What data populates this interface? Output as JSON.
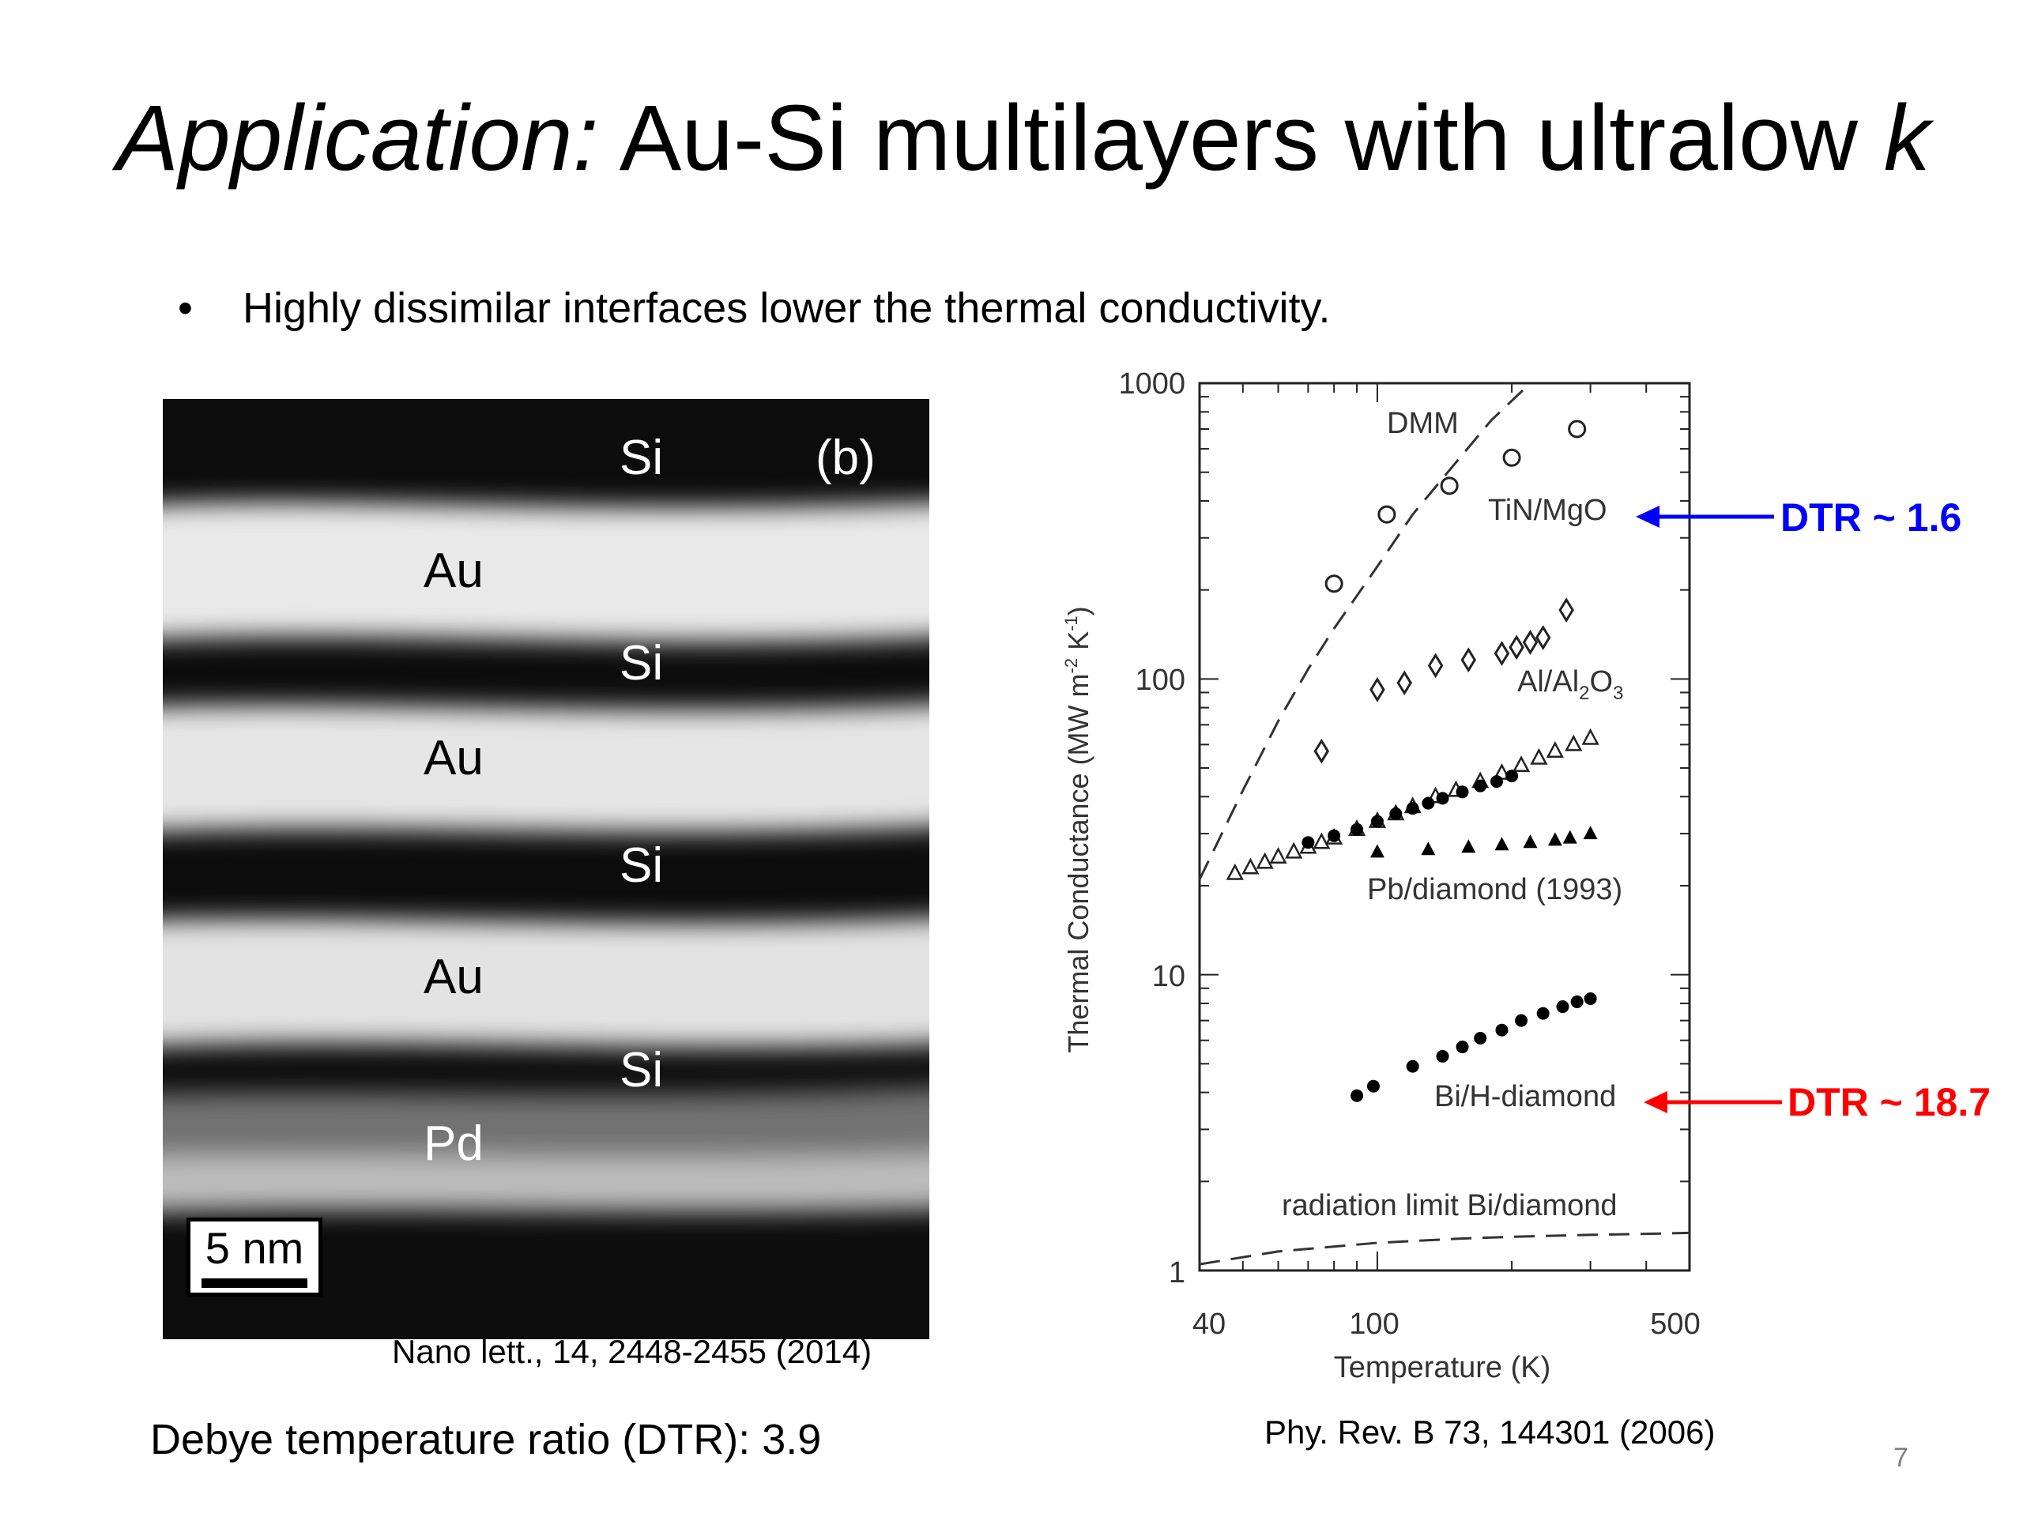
{
  "slide": {
    "title_italic": "Application:",
    "title_rest": " Au-Si multilayers with ultralow ",
    "title_k": "k",
    "bullet_symbol": "•",
    "bullet": "Highly dissimilar interfaces lower the thermal conductivity.",
    "dtr_text": "Debye temperature ratio (DTR): 3.9",
    "page_number": "7"
  },
  "tem_image": {
    "panel_label": "(b)",
    "layer_labels": [
      "Si",
      "Au",
      "Si",
      "Au",
      "Si",
      "Au",
      "Si",
      "Pd"
    ],
    "scale_bar": "5 nm",
    "citation": "Nano lett., 14, 2448-2455 (2014)"
  },
  "chart_data": {
    "type": "scatter",
    "xlabel": "Temperature (K)",
    "ylabel": "Thermal Conductance (MW m-2 K-1)",
    "x_scale": "log",
    "y_scale": "log",
    "xlim": [
      40,
      500
    ],
    "ylim": [
      1,
      1000
    ],
    "x_ticks": [
      "40",
      "100",
      "500"
    ],
    "y_ticks": [
      "1",
      "10",
      "100",
      "1000"
    ],
    "citation": "Phy. Rev. B 73, 144301 (2006)",
    "series": [
      {
        "name": "TiN/MgO",
        "marker": "open-circle",
        "x": [
          80,
          105,
          145,
          200,
          280
        ],
        "y": [
          210,
          360,
          450,
          560,
          700
        ]
      },
      {
        "name": "Al/Al2O3",
        "marker": "open-diamond",
        "x": [
          75,
          100,
          115,
          135,
          160,
          190,
          205,
          220,
          235,
          265
        ],
        "y": [
          57,
          92,
          97,
          111,
          116,
          122,
          128,
          133,
          138,
          171
        ]
      },
      {
        "name": "open triangles",
        "marker": "open-triangle",
        "x": [
          48,
          52,
          56,
          60,
          65,
          70,
          75,
          80,
          90,
          100,
          110,
          120,
          135,
          150,
          170,
          190,
          210,
          230,
          250,
          275,
          300
        ],
        "y": [
          22,
          23,
          24,
          25,
          26,
          27,
          28,
          29,
          31,
          33,
          35,
          37,
          40,
          42,
          45,
          48,
          51,
          54,
          57,
          60,
          63
        ]
      },
      {
        "name": "filled circles",
        "marker": "filled-circle",
        "x": [
          70,
          80,
          90,
          100,
          110,
          120,
          130,
          140,
          155,
          170,
          185,
          200
        ],
        "y": [
          28,
          29.5,
          31,
          33,
          35,
          36.5,
          38,
          39.5,
          41.5,
          43.5,
          45,
          47
        ]
      },
      {
        "name": "Pb/diamond (1993)",
        "marker": "filled-triangle",
        "x": [
          100,
          130,
          160,
          190,
          220,
          250,
          270,
          300
        ],
        "y": [
          26,
          26.5,
          27,
          27.5,
          28,
          28.5,
          29,
          30
        ]
      },
      {
        "name": "Bi/H-diamond",
        "marker": "filled-circle",
        "x": [
          90,
          98,
          120,
          140,
          155,
          170,
          190,
          210,
          235,
          260,
          280,
          300
        ],
        "y": [
          3.9,
          4.2,
          4.9,
          5.3,
          5.7,
          6.1,
          6.5,
          7.0,
          7.4,
          7.8,
          8.1,
          8.3
        ]
      }
    ],
    "curves": [
      {
        "name": "DMM",
        "style": "dashed",
        "x": [
          40,
          50,
          60,
          70,
          80,
          100,
          120,
          150,
          180,
          220
        ],
        "y": [
          21,
          42,
          72,
          108,
          148,
          240,
          360,
          540,
          750,
          1000
        ]
      },
      {
        "name": "radiation limit Bi/diamond",
        "style": "dashed",
        "x": [
          40,
          60,
          100,
          150,
          200,
          300,
          400,
          500
        ],
        "y": [
          1.05,
          1.16,
          1.24,
          1.28,
          1.3,
          1.32,
          1.33,
          1.34
        ]
      }
    ],
    "annotations": {
      "dmm": "DMM",
      "tin_mgo": "TiN/MgO",
      "al_al2o3_main": "Al/Al",
      "al_al2o3_sub": "2",
      "al_al2o3_o": "O",
      "al_al2o3_sub3": "3",
      "pb_diamond": "Pb/diamond (1993)",
      "bi_h_diamond": "Bi/H-diamond",
      "radiation_limit": "radiation limit Bi/diamond",
      "ylabel_a": "Thermal Conductance (MW m",
      "ylabel_b": "-2",
      "ylabel_c": " K",
      "ylabel_d": "-1",
      "ylabel_e": ")"
    },
    "dtr_annotations": [
      {
        "text": "DTR ~ 1.6",
        "color": "#0000ff",
        "target": "TiN/MgO"
      },
      {
        "text": "DTR ~ 18.7",
        "color": "#ff0000",
        "target": "Bi/H-diamond"
      }
    ]
  }
}
